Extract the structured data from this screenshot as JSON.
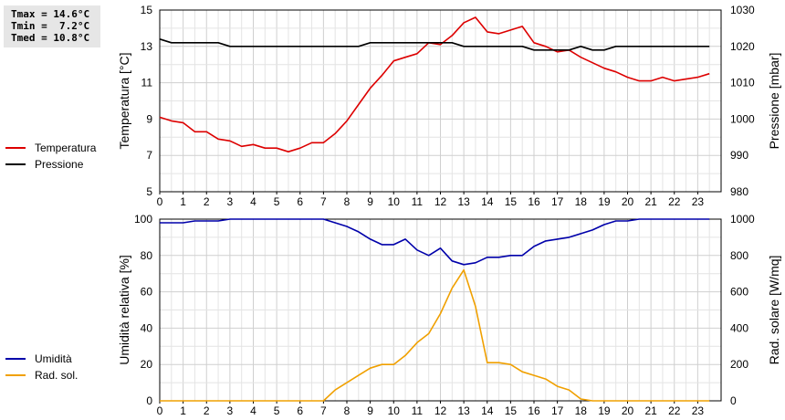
{
  "stats": {
    "tmax": "Tmax = 14.6°C",
    "tmin": "Tmin =  7.2°C",
    "tmed": "Tmed = 10.8°C"
  },
  "legend_top": [
    {
      "label": "Temperatura",
      "color": "#dd0000"
    },
    {
      "label": "Pressione",
      "color": "#000000"
    }
  ],
  "legend_bottom": [
    {
      "label": "Umidità",
      "color": "#0000aa"
    },
    {
      "label": "Rad. sol.",
      "color": "#f0a000"
    }
  ],
  "chart_data": [
    {
      "type": "line",
      "title": "",
      "xlabel": "",
      "ylabel": "Temperatura [°C]",
      "ylabel_right": "Pressione [mbar]",
      "xlim": [
        0,
        24
      ],
      "ylim": [
        5,
        15
      ],
      "ylim_right": [
        980,
        1030
      ],
      "x_ticks": [
        "0",
        "1",
        "2",
        "3",
        "4",
        "5",
        "6",
        "7",
        "8",
        "9",
        "10",
        "11",
        "12",
        "13",
        "14",
        "15",
        "16",
        "17",
        "18",
        "19",
        "20",
        "21",
        "22",
        "23"
      ],
      "y_ticks": [
        "5",
        "7",
        "9",
        "11",
        "13",
        "15"
      ],
      "y_ticks_right": [
        "980",
        "990",
        "1000",
        "1010",
        "1020",
        "1030"
      ],
      "grid": true,
      "series": [
        {
          "name": "Temperatura",
          "axis": "left",
          "color": "#dd0000",
          "x": [
            0,
            0.5,
            1,
            1.5,
            2,
            2.5,
            3,
            3.5,
            4,
            4.5,
            5,
            5.5,
            6,
            6.5,
            7,
            7.5,
            8,
            8.5,
            9,
            9.5,
            10,
            10.5,
            11,
            11.5,
            12,
            12.5,
            13,
            13.5,
            14,
            14.5,
            15,
            15.5,
            16,
            16.5,
            17,
            17.5,
            18,
            18.5,
            19,
            19.5,
            20,
            20.5,
            21,
            21.5,
            22,
            22.5,
            23,
            23.5
          ],
          "y": [
            9.1,
            8.9,
            8.8,
            8.3,
            8.3,
            7.9,
            7.8,
            7.5,
            7.6,
            7.4,
            7.4,
            7.2,
            7.4,
            7.7,
            7.7,
            8.2,
            8.9,
            9.8,
            10.7,
            11.4,
            12.2,
            12.4,
            12.6,
            13.2,
            13.1,
            13.6,
            14.3,
            14.6,
            13.8,
            13.7,
            13.9,
            14.1,
            13.2,
            13.0,
            12.7,
            12.8,
            12.4,
            12.1,
            11.8,
            11.6,
            11.3,
            11.1,
            11.1,
            11.3,
            11.1,
            11.2,
            11.3,
            11.5
          ]
        },
        {
          "name": "Pressione",
          "axis": "right",
          "color": "#000000",
          "x": [
            0,
            0.5,
            1,
            1.5,
            2,
            2.5,
            3,
            3.5,
            4,
            4.5,
            5,
            5.5,
            6,
            6.5,
            7,
            7.5,
            8,
            8.5,
            9,
            9.5,
            10,
            10.5,
            11,
            11.5,
            12,
            12.5,
            13,
            13.5,
            14,
            14.5,
            15,
            15.5,
            16,
            16.5,
            17,
            17.5,
            18,
            18.5,
            19,
            19.5,
            20,
            20.5,
            21,
            21.5,
            22,
            22.5,
            23,
            23.5
          ],
          "y": [
            1022,
            1021,
            1021,
            1021,
            1021,
            1021,
            1020,
            1020,
            1020,
            1020,
            1020,
            1020,
            1020,
            1020,
            1020,
            1020,
            1020,
            1020,
            1021,
            1021,
            1021,
            1021,
            1021,
            1021,
            1021,
            1021,
            1020,
            1020,
            1020,
            1020,
            1020,
            1020,
            1019,
            1019,
            1019,
            1019,
            1020,
            1019,
            1019,
            1020,
            1020,
            1020,
            1020,
            1020,
            1020,
            1020,
            1020,
            1020
          ]
        }
      ]
    },
    {
      "type": "line",
      "title": "",
      "xlabel": "",
      "ylabel": "Umidità relativa [%]",
      "ylabel_right": "Rad. solare [W/mq]",
      "xlim": [
        0,
        24
      ],
      "ylim": [
        0,
        100
      ],
      "ylim_right": [
        0,
        1000
      ],
      "x_ticks": [
        "0",
        "1",
        "2",
        "3",
        "4",
        "5",
        "6",
        "7",
        "8",
        "9",
        "10",
        "11",
        "12",
        "13",
        "14",
        "15",
        "16",
        "17",
        "18",
        "19",
        "20",
        "21",
        "22",
        "23"
      ],
      "y_ticks": [
        "0",
        "20",
        "40",
        "60",
        "80",
        "100"
      ],
      "y_ticks_right": [
        "0",
        "200",
        "400",
        "600",
        "800",
        "1000"
      ],
      "grid": true,
      "series": [
        {
          "name": "Umidità",
          "axis": "left",
          "color": "#0000aa",
          "x": [
            0,
            0.5,
            1,
            1.5,
            2,
            2.5,
            3,
            3.5,
            4,
            4.5,
            5,
            5.5,
            6,
            6.5,
            7,
            7.5,
            8,
            8.5,
            9,
            9.5,
            10,
            10.5,
            11,
            11.5,
            12,
            12.5,
            13,
            13.5,
            14,
            14.5,
            15,
            15.5,
            16,
            16.5,
            17,
            17.5,
            18,
            18.5,
            19,
            19.5,
            20,
            20.5,
            21,
            21.5,
            22,
            22.5,
            23,
            23.5
          ],
          "y": [
            98,
            98,
            98,
            99,
            99,
            99,
            100,
            100,
            100,
            100,
            100,
            100,
            100,
            100,
            100,
            98,
            96,
            93,
            89,
            86,
            86,
            89,
            83,
            80,
            84,
            77,
            75,
            76,
            79,
            79,
            80,
            80,
            85,
            88,
            89,
            90,
            92,
            94,
            97,
            99,
            99,
            100,
            100,
            100,
            100,
            100,
            100,
            100
          ]
        },
        {
          "name": "Rad. sol.",
          "axis": "right",
          "color": "#f0a000",
          "x": [
            0,
            0.5,
            1,
            1.5,
            2,
            2.5,
            3,
            3.5,
            4,
            4.5,
            5,
            5.5,
            6,
            6.5,
            7,
            7.5,
            8,
            8.5,
            9,
            9.5,
            10,
            10.5,
            11,
            11.5,
            12,
            12.5,
            13,
            13.5,
            14,
            14.5,
            15,
            15.5,
            16,
            16.5,
            17,
            17.5,
            18,
            18.5,
            19,
            19.5,
            20,
            20.5,
            21,
            21.5,
            22,
            22.5,
            23,
            23.5
          ],
          "y": [
            0,
            0,
            0,
            0,
            0,
            0,
            0,
            0,
            0,
            0,
            0,
            0,
            0,
            0,
            0,
            60,
            100,
            140,
            180,
            200,
            200,
            250,
            320,
            370,
            480,
            620,
            720,
            520,
            210,
            210,
            200,
            160,
            140,
            120,
            80,
            60,
            10,
            0,
            0,
            0,
            0,
            0,
            0,
            0,
            0,
            0,
            0,
            0
          ]
        }
      ]
    }
  ]
}
